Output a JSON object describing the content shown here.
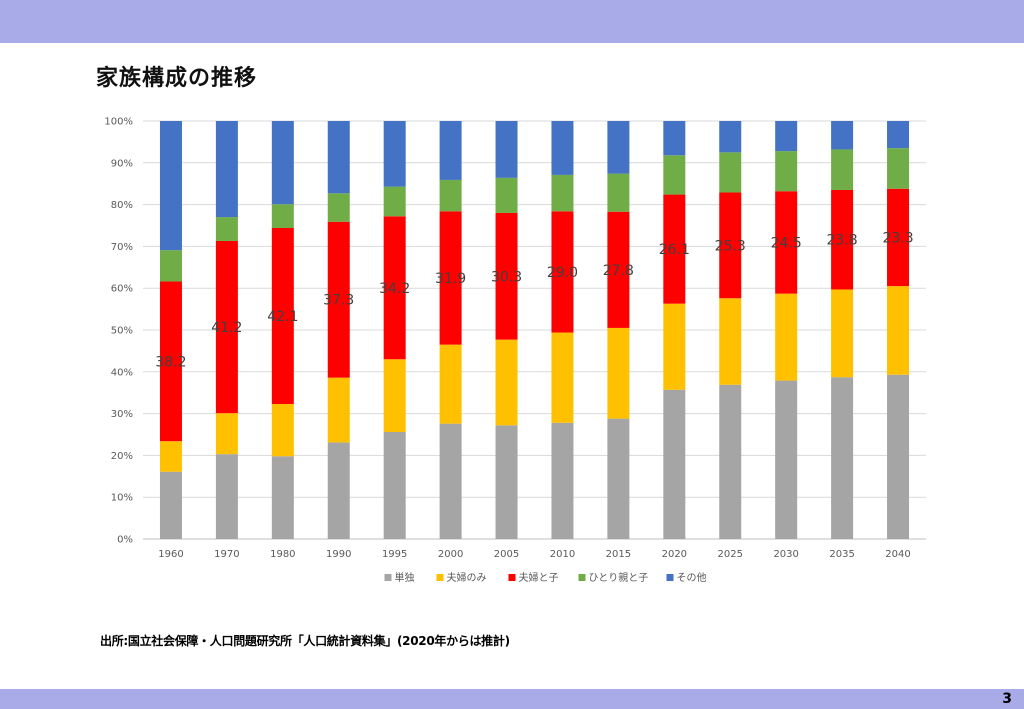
{
  "slide": {
    "title": "家族構成の推移",
    "source": "出所:国立社会保障・人口問題研究所「人口統計資料集」(2020年からは推計)",
    "page_number": "3"
  },
  "colors": {
    "header_bar": "#a9abe9",
    "single": "#a5a5a5",
    "couple_only": "#ffc000",
    "couple_children": "#ff0000",
    "single_parent": "#70ad47",
    "other": "#4472c4"
  },
  "chart_data": {
    "type": "bar",
    "stacked": "percent",
    "title": "",
    "xlabel": "",
    "ylabel": "",
    "ylim": [
      0,
      100
    ],
    "y_ticks": [
      "0%",
      "10%",
      "20%",
      "30%",
      "40%",
      "50%",
      "60%",
      "70%",
      "80%",
      "90%",
      "100%"
    ],
    "categories": [
      "1960",
      "1970",
      "1980",
      "1990",
      "1995",
      "2000",
      "2005",
      "2010",
      "2015",
      "2020",
      "2025",
      "2030",
      "2035",
      "2040"
    ],
    "series": [
      {
        "name": "単独",
        "color": "#a5a5a5",
        "values": [
          16.1,
          20.3,
          19.8,
          23.1,
          25.6,
          27.6,
          27.2,
          27.8,
          28.8,
          35.7,
          36.9,
          37.9,
          38.7,
          39.3
        ]
      },
      {
        "name": "夫婦のみ",
        "color": "#ffc000",
        "values": [
          7.3,
          9.8,
          12.5,
          15.5,
          17.4,
          18.9,
          20.5,
          21.6,
          21.7,
          20.6,
          20.7,
          20.8,
          21.0,
          21.2
        ]
      },
      {
        "name": "夫婦と子",
        "color": "#ff0000",
        "values": [
          38.2,
          41.2,
          42.1,
          37.3,
          34.2,
          31.9,
          30.3,
          29.0,
          27.8,
          26.1,
          25.3,
          24.5,
          23.8,
          23.3
        ]
      },
      {
        "name": "ひとり親と子",
        "color": "#70ad47",
        "values": [
          7.5,
          5.7,
          5.7,
          6.8,
          7.1,
          7.5,
          8.4,
          8.7,
          9.1,
          9.4,
          9.6,
          9.6,
          9.7,
          9.7
        ]
      },
      {
        "name": "その他",
        "color": "#4472c4",
        "values": [
          30.9,
          23.0,
          19.9,
          17.3,
          15.7,
          14.1,
          13.6,
          12.9,
          12.6,
          8.2,
          7.5,
          7.2,
          6.8,
          6.5
        ]
      }
    ],
    "data_labels": {
      "series": "夫婦と子",
      "values": [
        "38.2",
        "41.2",
        "42.1",
        "37.3",
        "34.2",
        "31.9",
        "30.3",
        "29.0",
        "27.8",
        "26.1",
        "25.3",
        "24.5",
        "23.8",
        "23.3"
      ]
    },
    "legend_position": "bottom",
    "grid": true
  }
}
